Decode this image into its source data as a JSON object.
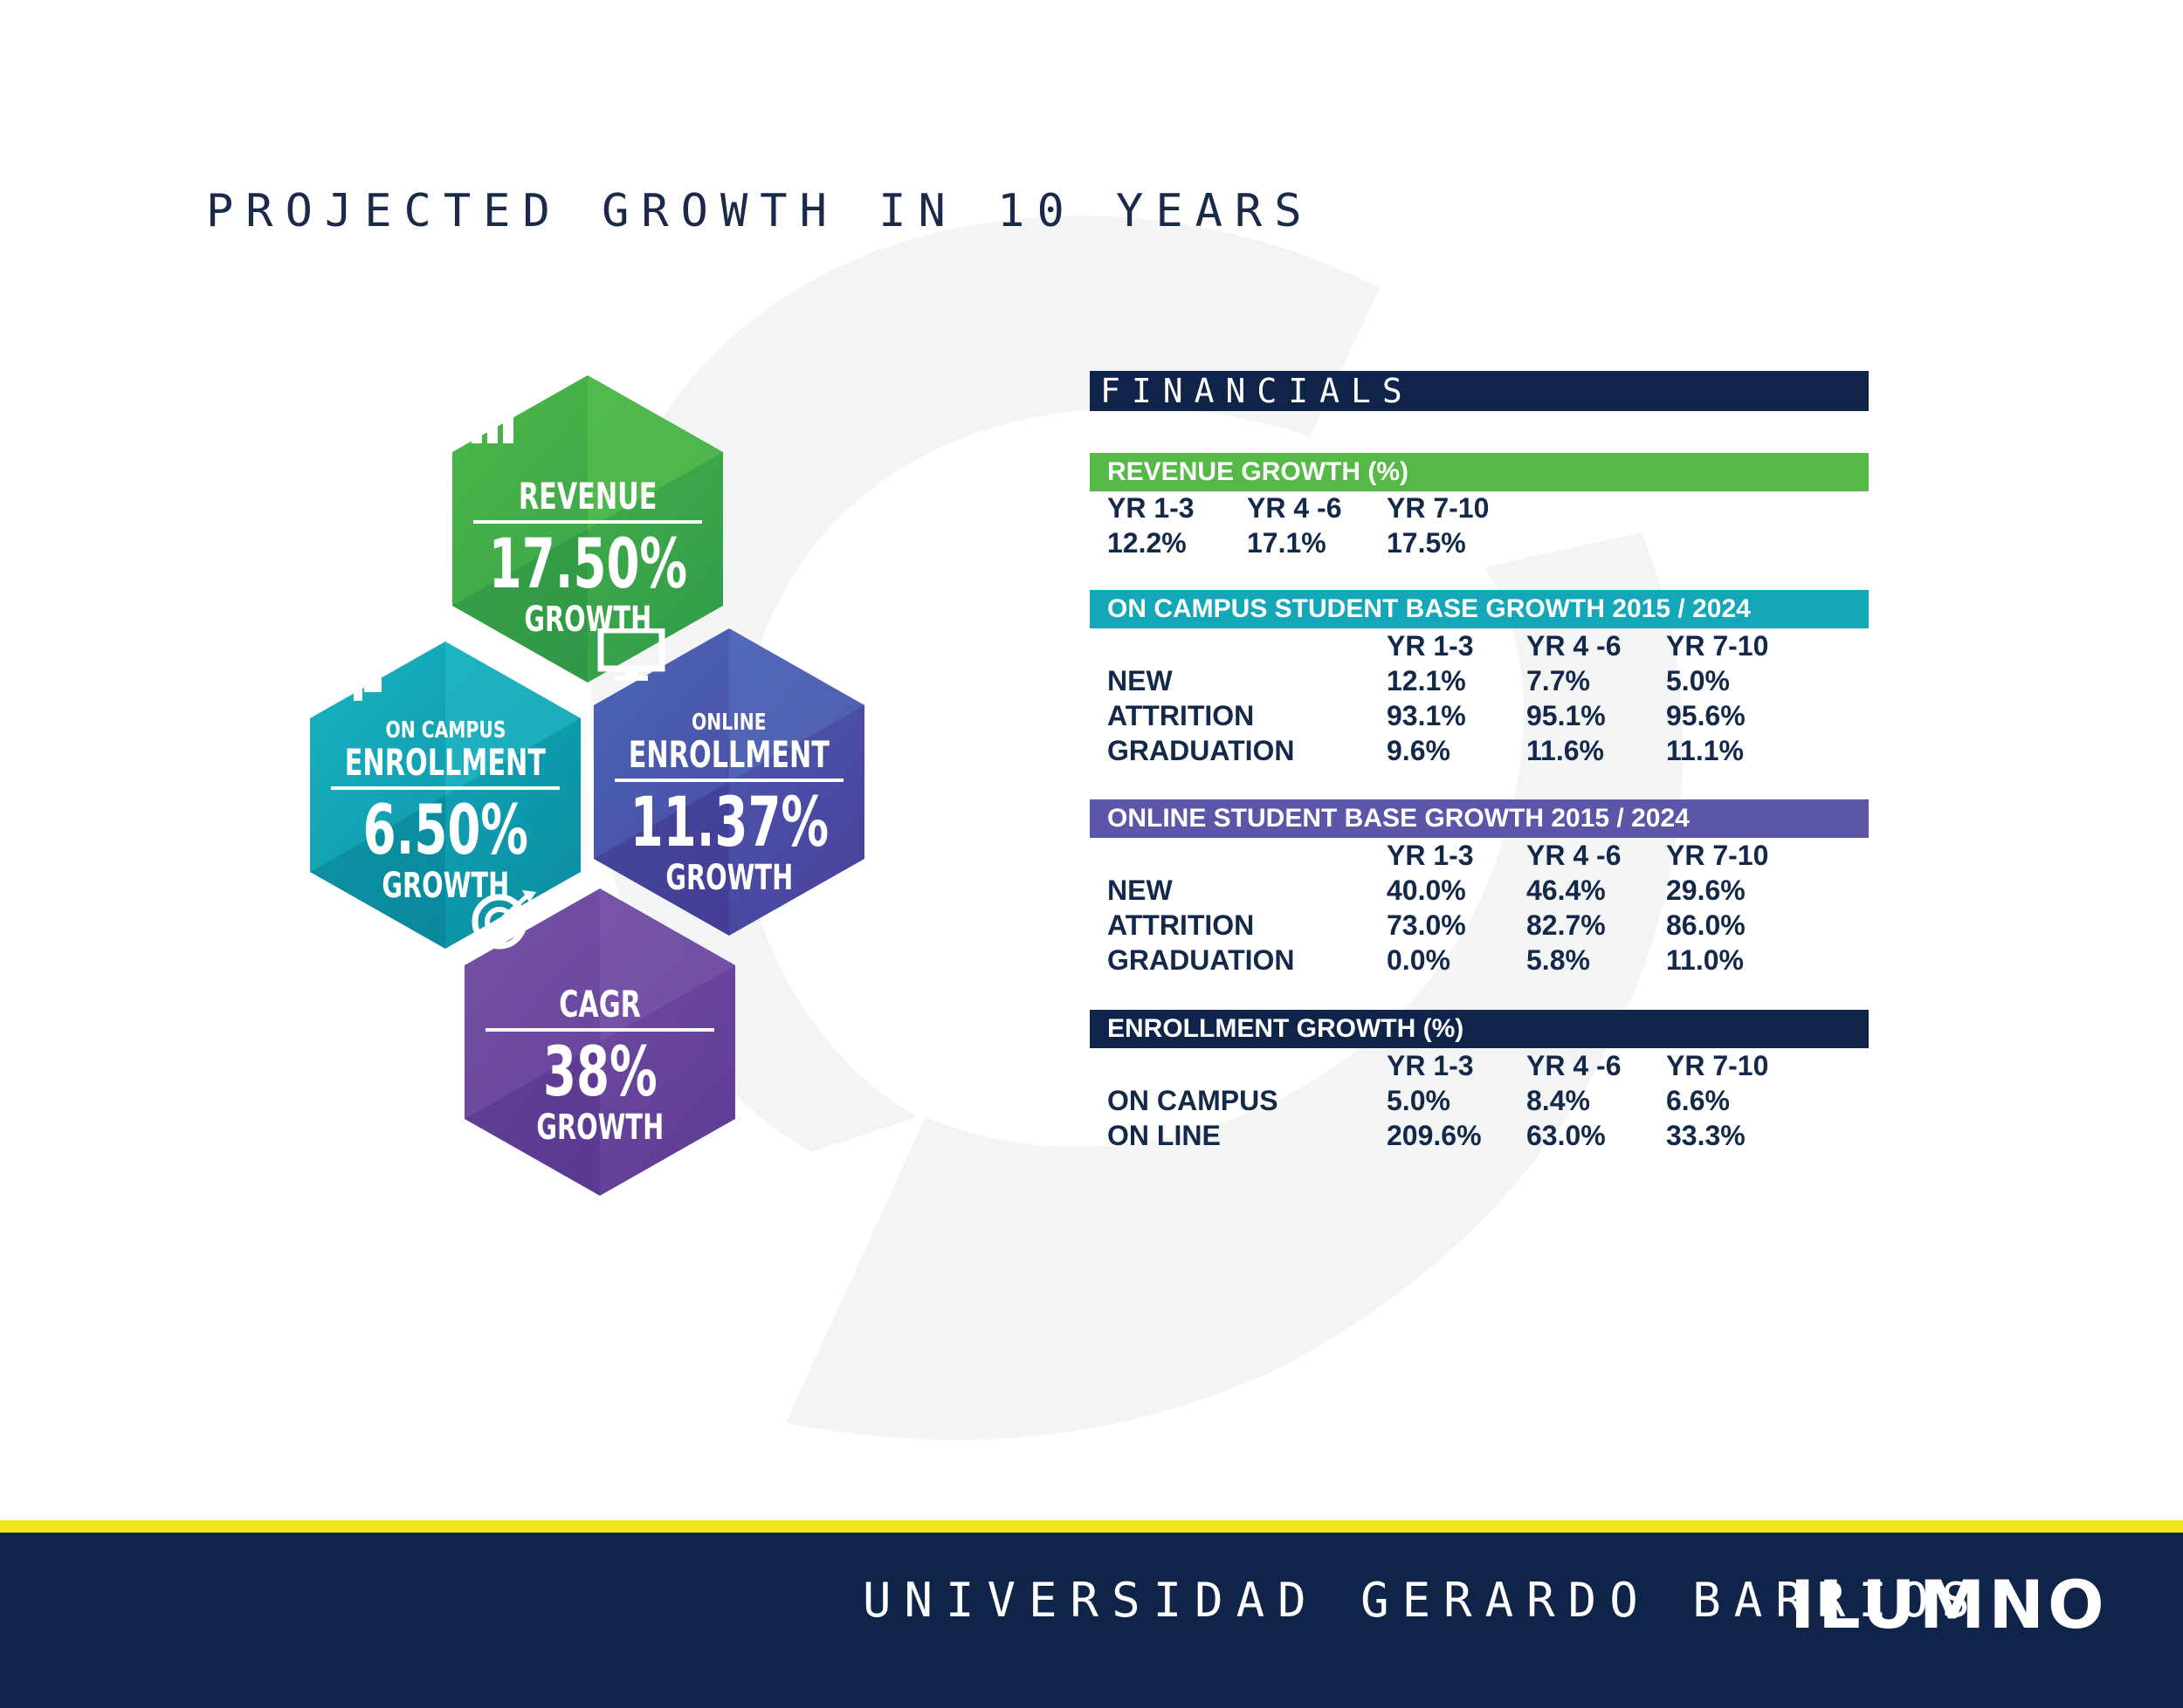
{
  "page": {
    "title": "PROJECTED GROWTH IN 10 YEARS"
  },
  "colors": {
    "navy": "#0f2448",
    "green": "#55b946",
    "teal": "#13a7b8",
    "indigo": "#4e4fa3",
    "purple": "#6a449c",
    "yellow": "#f3e51b",
    "watermark": "#f3f4f4"
  },
  "hexes": {
    "revenue": {
      "icon": "bar-chart-up-icon",
      "label": "REVENUE",
      "value": "17.50%",
      "sub": "GROWTH"
    },
    "on_campus": {
      "icon": "handshake-icon",
      "small": "ON CAMPUS",
      "label": "ENROLLMENT",
      "value": "6.50%",
      "sub": "GROWTH"
    },
    "online": {
      "icon": "monitor-icon",
      "small": "ONLINE",
      "label": "ENROLLMENT",
      "value": "11.37%",
      "sub": "GROWTH"
    },
    "cagr": {
      "icon": "target-arrow-icon",
      "label": "CAGR",
      "value": "38%",
      "sub": "GROWTH"
    }
  },
  "financials": {
    "title": "FINANCIALS",
    "revenue": {
      "title": "REVENUE GROWTH (%)",
      "headers": [
        "YR 1-3",
        "YR 4 -6",
        "YR 7-10"
      ],
      "values": [
        "12.2%",
        "17.1%",
        "17.5%"
      ]
    },
    "on_campus": {
      "title": "ON CAMPUS STUDENT BASE GROWTH 2015 / 2024",
      "headers": [
        "YR 1-3",
        "YR 4 -6",
        "YR 7-10"
      ],
      "rows": [
        {
          "label": "NEW",
          "values": [
            "12.1%",
            "7.7%",
            "5.0%"
          ]
        },
        {
          "label": "ATTRITION",
          "values": [
            "93.1%",
            "95.1%",
            "95.6%"
          ]
        },
        {
          "label": "GRADUATION",
          "values": [
            "9.6%",
            "11.6%",
            "11.1%"
          ]
        }
      ]
    },
    "online": {
      "title": "ONLINE STUDENT BASE GROWTH 2015 / 2024",
      "headers": [
        "YR 1-3",
        "YR 4 -6",
        "YR 7-10"
      ],
      "rows": [
        {
          "label": "NEW",
          "values": [
            "40.0%",
            "46.4%",
            "29.6%"
          ]
        },
        {
          "label": "ATTRITION",
          "values": [
            "73.0%",
            "82.7%",
            "86.0%"
          ]
        },
        {
          "label": "GRADUATION",
          "values": [
            "0.0%",
            "5.8%",
            "11.0%"
          ]
        }
      ]
    },
    "enrollment": {
      "title": "ENROLLMENT GROWTH (%)",
      "headers": [
        "YR 1-3",
        "YR 4 -6",
        "YR 7-10"
      ],
      "rows": [
        {
          "label": "ON CAMPUS",
          "values": [
            "5.0%",
            "8.4%",
            "6.6%"
          ]
        },
        {
          "label": "ON LINE",
          "values": [
            "209.6%",
            "63.0%",
            "33.3%"
          ]
        }
      ]
    }
  },
  "footer": {
    "university": "UNIVERSIDAD GERARDO BARRIOS",
    "logo": "ILUMNO"
  }
}
